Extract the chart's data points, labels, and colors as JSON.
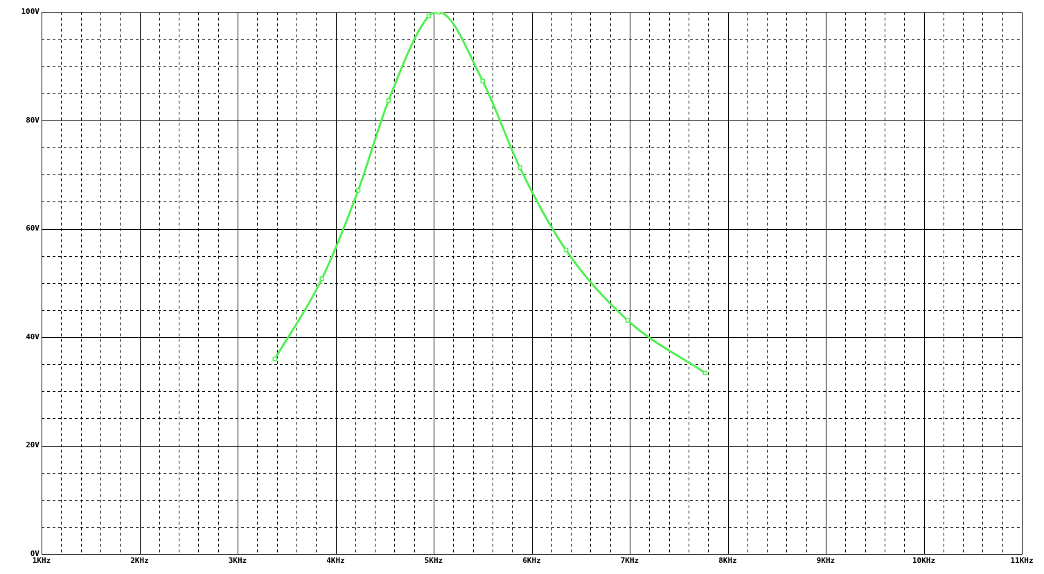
{
  "chart_data": {
    "type": "line",
    "x": [
      3.38,
      3.86,
      4.23,
      4.54,
      4.95,
      5.05,
      5.5,
      5.88,
      6.35,
      6.98,
      7.77
    ],
    "series": [
      {
        "color": "#50f050",
        "values": [
          36.0,
          50.8,
          67.1,
          83.7,
          99.3,
          100,
          87.3,
          71.3,
          56.1,
          43.1,
          33.4
        ]
      }
    ],
    "marker": "square",
    "line_style": "solid",
    "grid": true,
    "xlim": [
      1,
      11
    ],
    "xticks": [
      {
        "value": 1,
        "label": "1KHz"
      },
      {
        "value": 1.2,
        "label": null
      },
      {
        "value": 1.4,
        "label": null
      },
      {
        "value": 1.6,
        "label": null
      },
      {
        "value": 1.8,
        "label": null
      },
      {
        "value": 2,
        "label": "2KHz"
      },
      {
        "value": 2.2,
        "label": null
      },
      {
        "value": 2.4,
        "label": null
      },
      {
        "value": 2.6,
        "label": null
      },
      {
        "value": 2.8,
        "label": null
      },
      {
        "value": 3,
        "label": "3KHz"
      },
      {
        "value": 3.2,
        "label": null
      },
      {
        "value": 3.4,
        "label": null
      },
      {
        "value": 3.6,
        "label": null
      },
      {
        "value": 3.8,
        "label": null
      },
      {
        "value": 4,
        "label": "4KHz"
      },
      {
        "value": 4.2,
        "label": null
      },
      {
        "value": 4.4,
        "label": null
      },
      {
        "value": 4.6,
        "label": null
      },
      {
        "value": 4.8,
        "label": null
      },
      {
        "value": 5,
        "label": "5KHz"
      },
      {
        "value": 5.2,
        "label": null
      },
      {
        "value": 5.4,
        "label": null
      },
      {
        "value": 5.6,
        "label": null
      },
      {
        "value": 5.8,
        "label": null
      },
      {
        "value": 6,
        "label": "6KHz"
      },
      {
        "value": 6.2,
        "label": null
      },
      {
        "value": 6.4,
        "label": null
      },
      {
        "value": 6.6,
        "label": null
      },
      {
        "value": 6.8,
        "label": null
      },
      {
        "value": 7,
        "label": "7KHz"
      },
      {
        "value": 7.2,
        "label": null
      },
      {
        "value": 7.4,
        "label": null
      },
      {
        "value": 7.6,
        "label": null
      },
      {
        "value": 7.8,
        "label": null
      },
      {
        "value": 8,
        "label": "8KHz"
      },
      {
        "value": 8.2,
        "label": null
      },
      {
        "value": 8.4,
        "label": null
      },
      {
        "value": 8.6,
        "label": null
      },
      {
        "value": 8.8,
        "label": null
      },
      {
        "value": 9,
        "label": "9KHz"
      },
      {
        "value": 9.2,
        "label": null
      },
      {
        "value": 9.4,
        "label": null
      },
      {
        "value": 9.6,
        "label": null
      },
      {
        "value": 9.8,
        "label": null
      },
      {
        "value": 10,
        "label": "10KHz"
      },
      {
        "value": 10.2,
        "label": null
      },
      {
        "value": 10.4,
        "label": null
      },
      {
        "value": 10.6,
        "label": null
      },
      {
        "value": 10.8,
        "label": null
      },
      {
        "value": 11,
        "label": "11KHz"
      }
    ],
    "ylim": [
      0,
      100
    ],
    "yticks": [
      {
        "value": 0,
        "label": "0V"
      },
      {
        "value": 5,
        "label": null
      },
      {
        "value": 10,
        "label": null
      },
      {
        "value": 15,
        "label": null
      },
      {
        "value": 20,
        "label": "20V"
      },
      {
        "value": 25,
        "label": null
      },
      {
        "value": 30,
        "label": null
      },
      {
        "value": 35,
        "label": null
      },
      {
        "value": 40,
        "label": "40V"
      },
      {
        "value": 45,
        "label": null
      },
      {
        "value": 50,
        "label": null
      },
      {
        "value": 55,
        "label": null
      },
      {
        "value": 60,
        "label": "60V"
      },
      {
        "value": 65,
        "label": null
      },
      {
        "value": 70,
        "label": null
      },
      {
        "value": 75,
        "label": null
      },
      {
        "value": 80,
        "label": "80V"
      },
      {
        "value": 85,
        "label": null
      },
      {
        "value": 90,
        "label": null
      },
      {
        "value": 95,
        "label": null
      },
      {
        "value": 100,
        "label": "100V"
      }
    ]
  }
}
